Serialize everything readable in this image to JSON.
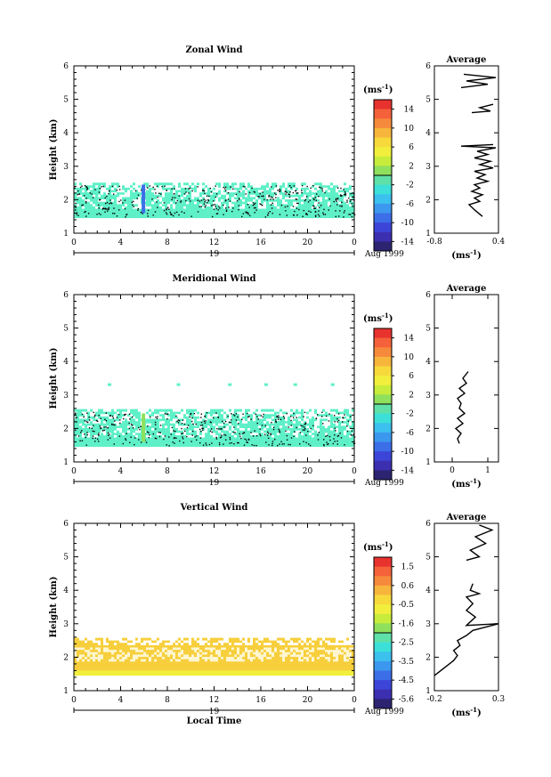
{
  "chart_data": [
    {
      "type": "heatmap",
      "title": "Zonal Wind",
      "ylabel": "Height (km)",
      "xlabel": "",
      "xticks": [
        "0",
        "4",
        "8",
        "12",
        "16",
        "20",
        "0"
      ],
      "yticks": [
        "1",
        "2",
        "3",
        "4",
        "5",
        "6"
      ],
      "xlim": [
        0,
        24
      ],
      "ylim": [
        1,
        6
      ],
      "date_label": "19",
      "month_label": "Aug 1999",
      "colorbar_unit": "(ms",
      "colorbar_unit_exp": "-1",
      "colorbar_ticks": [
        "14",
        "10",
        "6",
        "2",
        "-2",
        "-6",
        "-10",
        "-14"
      ],
      "colorbar_colors": [
        "#e8322e",
        "#f5613a",
        "#f68a3c",
        "#f7b53c",
        "#f7d93c",
        "#f2ef3c",
        "#c8ec3c",
        "#8fe05c",
        "#5fe0a8",
        "#3ce0d8",
        "#3cc0ee",
        "#3c98ee",
        "#3c6ee8",
        "#3c45d8",
        "#3c2fb0",
        "#2c2470"
      ],
      "data_color": "#5ff0c8",
      "data_band": [
        1.45,
        2.45
      ],
      "anomaly_color": "#3c6ee8",
      "avg": {
        "title": "Average",
        "xticks": [
          "-0.8",
          "0.4"
        ],
        "xlim": [
          -0.8,
          0.4
        ],
        "xlabel": "(ms",
        "xlabel_exp": "-1",
        "yticks": [
          "1",
          "2",
          "3",
          "4",
          "5",
          "6"
        ],
        "profile": [
          [
            0.1,
            1.5
          ],
          [
            -0.05,
            1.7
          ],
          [
            -0.15,
            1.85
          ],
          [
            0.05,
            1.95
          ],
          [
            -0.05,
            2.05
          ],
          [
            0.1,
            2.15
          ],
          [
            -0.1,
            2.25
          ],
          [
            0.05,
            2.35
          ],
          [
            -0.05,
            2.45
          ],
          [
            0.2,
            2.55
          ],
          [
            0.0,
            2.65
          ],
          [
            0.15,
            2.75
          ],
          [
            -0.05,
            2.85
          ],
          [
            0.3,
            2.95
          ],
          [
            0.05,
            3.05
          ],
          [
            0.25,
            3.15
          ],
          [
            -0.05,
            3.25
          ],
          [
            0.2,
            3.35
          ],
          [
            0.0,
            3.45
          ],
          [
            0.35,
            3.55
          ],
          [
            -0.3,
            3.6
          ],
          [
            0.3,
            3.65
          ]
        ],
        "profile_upper": [
          [
            [
              -0.1,
              4.6
            ],
            [
              0.25,
              4.65
            ],
            [
              0.05,
              4.75
            ],
            [
              0.3,
              4.85
            ]
          ],
          [
            [
              -0.3,
              5.35
            ],
            [
              0.2,
              5.45
            ],
            [
              -0.2,
              5.55
            ],
            [
              0.35,
              5.65
            ],
            [
              -0.25,
              5.75
            ]
          ]
        ]
      }
    },
    {
      "type": "heatmap",
      "title": "Meridional Wind",
      "ylabel": "Height (km)",
      "xlabel": "",
      "xticks": [
        "0",
        "4",
        "8",
        "12",
        "16",
        "20",
        "0"
      ],
      "yticks": [
        "1",
        "2",
        "3",
        "4",
        "5",
        "6"
      ],
      "xlim": [
        0,
        24
      ],
      "ylim": [
        1,
        6
      ],
      "date_label": "19",
      "month_label": "Aug 1999",
      "colorbar_unit": "(ms",
      "colorbar_unit_exp": "-1",
      "colorbar_ticks": [
        "14",
        "10",
        "6",
        "2",
        "-2",
        "-6",
        "-10",
        "-14"
      ],
      "colorbar_colors": [
        "#e8322e",
        "#f5613a",
        "#f68a3c",
        "#f7b53c",
        "#f7d93c",
        "#f2ef3c",
        "#c8ec3c",
        "#8fe05c",
        "#5fe0a8",
        "#3ce0d8",
        "#3cc0ee",
        "#3c98ee",
        "#3c6ee8",
        "#3c45d8",
        "#3c2fb0",
        "#2c2470"
      ],
      "data_color": "#5ff0c8",
      "data_band": [
        1.45,
        2.5
      ],
      "anomaly_color": "#8fe05c",
      "avg": {
        "title": "Average",
        "xticks": [
          "0",
          "1"
        ],
        "xlim": [
          -0.5,
          1.3
        ],
        "xlabel": "(ms",
        "xlabel_exp": "-1",
        "yticks": [
          "1",
          "2",
          "3",
          "4",
          "5",
          "6"
        ],
        "profile": [
          [
            0.2,
            1.55
          ],
          [
            0.15,
            1.7
          ],
          [
            0.25,
            1.85
          ],
          [
            0.1,
            2.0
          ],
          [
            0.3,
            2.15
          ],
          [
            0.15,
            2.3
          ],
          [
            0.35,
            2.45
          ],
          [
            0.2,
            2.6
          ],
          [
            0.25,
            2.75
          ],
          [
            0.15,
            2.9
          ],
          [
            0.35,
            3.05
          ],
          [
            0.2,
            3.2
          ],
          [
            0.4,
            3.35
          ],
          [
            0.3,
            3.5
          ],
          [
            0.45,
            3.7
          ]
        ],
        "profile_upper": []
      }
    },
    {
      "type": "heatmap",
      "title": "Vertical Wind",
      "ylabel": "Height (km)",
      "xlabel": "Local Time",
      "xticks": [
        "0",
        "4",
        "8",
        "12",
        "16",
        "20",
        "0"
      ],
      "yticks": [
        "1",
        "2",
        "3",
        "4",
        "5",
        "6"
      ],
      "xlim": [
        0,
        24
      ],
      "ylim": [
        1,
        6
      ],
      "date_label": "19",
      "month_label": "Aug 1999",
      "colorbar_unit": "(ms",
      "colorbar_unit_exp": "-1",
      "colorbar_ticks": [
        "1.5",
        "0.6",
        "-0.5",
        "-1.6",
        "-2.5",
        "-3.5",
        "-4.5",
        "-5.6"
      ],
      "colorbar_colors": [
        "#e8322e",
        "#f5613a",
        "#f68a3c",
        "#f7b53c",
        "#f7d93c",
        "#f2ef3c",
        "#c8ec3c",
        "#8fe05c",
        "#5fe0a8",
        "#3ce0d8",
        "#3cc0ee",
        "#3c98ee",
        "#3c6ee8",
        "#3c45d8",
        "#3c2fb0",
        "#2c2470"
      ],
      "data_color": "#f7cf3c",
      "data_band": [
        1.45,
        2.55
      ],
      "data_color_low": "#f2ef3c",
      "avg": {
        "title": "Average",
        "xticks": [
          "-0.2",
          "0.3"
        ],
        "xlim": [
          -0.2,
          0.3
        ],
        "xlabel": "(ms",
        "xlabel_exp": "-1",
        "yticks": [
          "1",
          "2",
          "3",
          "4",
          "5",
          "6"
        ],
        "profile": [
          [
            -0.2,
            1.45
          ],
          [
            -0.15,
            1.6
          ],
          [
            -0.1,
            1.75
          ],
          [
            -0.05,
            1.9
          ],
          [
            -0.02,
            2.05
          ],
          [
            -0.05,
            2.2
          ],
          [
            0.0,
            2.35
          ],
          [
            -0.02,
            2.5
          ],
          [
            0.05,
            2.65
          ],
          [
            0.1,
            2.8
          ],
          [
            0.2,
            2.9
          ],
          [
            0.3,
            3.0
          ],
          [
            0.05,
            2.95
          ],
          [
            0.12,
            3.2
          ],
          [
            0.05,
            3.4
          ],
          [
            0.1,
            3.6
          ],
          [
            0.05,
            3.8
          ],
          [
            0.15,
            3.9
          ],
          [
            0.08,
            4.0
          ],
          [
            0.1,
            4.2
          ]
        ],
        "profile_upper": [
          [
            [
              0.05,
              4.9
            ],
            [
              0.15,
              5.0
            ],
            [
              0.08,
              5.2
            ],
            [
              0.2,
              5.4
            ],
            [
              0.12,
              5.6
            ],
            [
              0.25,
              5.8
            ],
            [
              0.15,
              5.95
            ]
          ]
        ]
      }
    }
  ]
}
